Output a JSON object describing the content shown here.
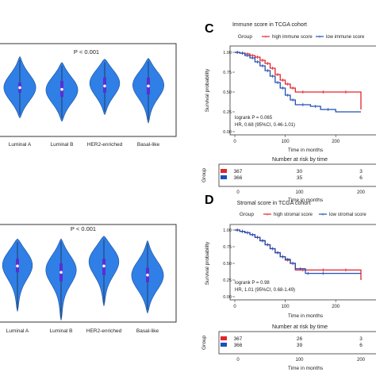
{
  "chart_data": [
    {
      "type": "violin",
      "panel": "top-left",
      "annotation": "P < 0.001",
      "categories": [
        "Luminal A",
        "Luminal B",
        "HER2-enriched",
        "Basal-like"
      ],
      "color": "#2f7fe6",
      "box_color": "#5a2fd0",
      "violins": [
        {
          "median": 0.58,
          "q1": 0.52,
          "q3": 0.64,
          "min": 0.22,
          "max": 0.95,
          "peak": 0.58,
          "width": 0.42
        },
        {
          "median": 0.56,
          "q1": 0.47,
          "q3": 0.66,
          "min": 0.18,
          "max": 0.88,
          "peak": 0.56,
          "width": 0.42
        },
        {
          "median": 0.6,
          "q1": 0.52,
          "q3": 0.7,
          "min": 0.26,
          "max": 0.92,
          "peak": 0.65,
          "width": 0.4
        },
        {
          "median": 0.6,
          "q1": 0.5,
          "q3": 0.7,
          "min": 0.16,
          "max": 0.93,
          "peak": 0.63,
          "width": 0.42
        }
      ]
    },
    {
      "type": "violin",
      "panel": "bottom-left",
      "annotation": "P < 0.001",
      "categories": [
        "Luminal A",
        "Luminal B",
        "HER2-enriched",
        "Basal-like"
      ],
      "color": "#2f7fe6",
      "box_color": "#5a2fd0",
      "violins": [
        {
          "median": 0.62,
          "q1": 0.55,
          "q3": 0.7,
          "min": 0.12,
          "max": 0.92,
          "peak": 0.66,
          "width": 0.42
        },
        {
          "median": 0.55,
          "q1": 0.45,
          "q3": 0.65,
          "min": 0.02,
          "max": 0.92,
          "peak": 0.6,
          "width": 0.42
        },
        {
          "median": 0.62,
          "q1": 0.52,
          "q3": 0.7,
          "min": 0.18,
          "max": 0.95,
          "peak": 0.7,
          "width": 0.42
        },
        {
          "median": 0.52,
          "q1": 0.44,
          "q3": 0.6,
          "min": 0.1,
          "max": 0.9,
          "peak": 0.52,
          "width": 0.42
        }
      ]
    },
    {
      "type": "line",
      "panel": "C",
      "title": "Immune score in TCGA cohort",
      "legend_title": "Group",
      "ylabel": "Survival probability",
      "xlabel": "Time in months",
      "xlim": [
        0,
        250
      ],
      "ylim": [
        0,
        1
      ],
      "xticks": [
        0,
        100,
        200
      ],
      "yticks": [
        "0.00",
        "0.25",
        "0.50",
        "0.75",
        "1.00"
      ],
      "stats_line1": "logrank P = 0.065",
      "stats_line2": "HR, 0.68 (95%CI, 0.46-1.01)",
      "series": [
        {
          "name": "high immune score",
          "color": "#e3242b",
          "x": [
            0,
            10,
            20,
            30,
            40,
            50,
            60,
            70,
            80,
            90,
            100,
            110,
            120,
            150,
            200,
            240,
            250
          ],
          "y": [
            1.0,
            0.99,
            0.98,
            0.96,
            0.94,
            0.9,
            0.86,
            0.8,
            0.72,
            0.65,
            0.6,
            0.55,
            0.5,
            0.5,
            0.5,
            0.5,
            0.28
          ]
        },
        {
          "name": "low immune score",
          "color": "#1f4fb5",
          "x": [
            0,
            10,
            20,
            30,
            40,
            50,
            60,
            70,
            80,
            90,
            100,
            110,
            120,
            150,
            170,
            200,
            250
          ],
          "y": [
            1.0,
            0.99,
            0.96,
            0.93,
            0.88,
            0.83,
            0.77,
            0.7,
            0.62,
            0.55,
            0.46,
            0.4,
            0.34,
            0.32,
            0.28,
            0.25,
            0.25
          ]
        }
      ],
      "risk_table": {
        "title": "Number at risk by time",
        "ylabel": "Group",
        "xlabel": "Time in months",
        "rows": [
          {
            "color": "#e3242b",
            "values": [
              "367",
              "30",
              "3"
            ]
          },
          {
            "color": "#1f4fb5",
            "values": [
              "366",
              "35",
              "6"
            ]
          }
        ]
      }
    },
    {
      "type": "line",
      "panel": "D",
      "title": "Stromal score in TCGA cohort",
      "legend_title": "Group",
      "ylabel": "Survival probability",
      "xlabel": "Time in months",
      "xlim": [
        0,
        250
      ],
      "ylim": [
        0,
        1
      ],
      "xticks": [
        0,
        100,
        200
      ],
      "yticks": [
        "0.00",
        "0.25",
        "0.50",
        "0.75",
        "1.00"
      ],
      "stats_line1": "logrank P = 0.98",
      "stats_line2": "HR, 1.01 (95%CI, 0.68-1.49)",
      "series": [
        {
          "name": "high stromal score",
          "color": "#e3242b",
          "x": [
            0,
            10,
            20,
            30,
            40,
            50,
            60,
            70,
            80,
            90,
            100,
            110,
            120,
            150,
            200,
            240,
            250
          ],
          "y": [
            1.0,
            0.98,
            0.96,
            0.93,
            0.89,
            0.84,
            0.78,
            0.72,
            0.66,
            0.6,
            0.55,
            0.5,
            0.4,
            0.4,
            0.4,
            0.4,
            0.25
          ]
        },
        {
          "name": "low stromal score",
          "color": "#1f4fb5",
          "x": [
            0,
            10,
            20,
            30,
            40,
            50,
            60,
            70,
            80,
            90,
            100,
            110,
            120,
            140,
            150,
            200,
            250
          ],
          "y": [
            1.0,
            0.98,
            0.96,
            0.93,
            0.89,
            0.84,
            0.78,
            0.72,
            0.66,
            0.6,
            0.56,
            0.5,
            0.42,
            0.35,
            0.35,
            0.35,
            0.35
          ]
        }
      ],
      "risk_table": {
        "title": "Number at risk by time",
        "ylabel": "Group",
        "xlabel": "Time in months",
        "rows": [
          {
            "color": "#e3242b",
            "values": [
              "367",
              "26",
              "3"
            ]
          },
          {
            "color": "#1f4fb5",
            "values": [
              "366",
              "39",
              "6"
            ]
          }
        ]
      }
    }
  ]
}
